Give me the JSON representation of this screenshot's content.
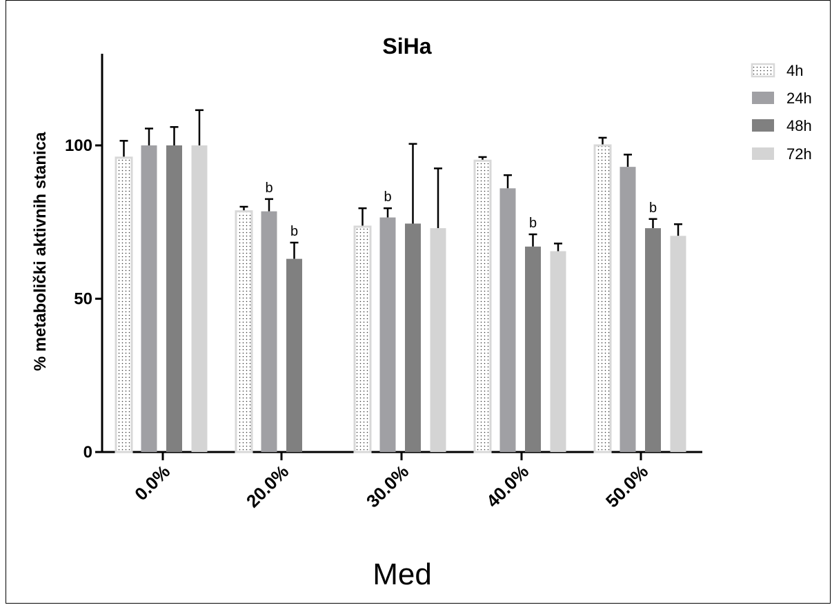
{
  "chart_data": {
    "type": "bar",
    "title": "SiHa",
    "xlabel": "Med",
    "ylabel": "% metabolički aktivnih stanica",
    "ylim": [
      0,
      130
    ],
    "yticks": [
      "0",
      "50",
      "100"
    ],
    "categories": [
      "0.0%",
      "20.0%",
      "30.0%",
      "40.0%",
      "50.0%"
    ],
    "series": [
      {
        "name": "4h",
        "color": "#ffffff",
        "values": [
          96,
          78.5,
          73.5,
          95,
          100
        ],
        "errors": [
          5.5,
          1.5,
          6,
          1.2,
          2.5
        ],
        "annotations": [
          "",
          "",
          "",
          "",
          ""
        ]
      },
      {
        "name": "24h",
        "color": "#a0a0a4",
        "values": [
          100,
          78.5,
          76.5,
          86,
          93
        ],
        "errors": [
          5.5,
          4,
          3,
          4.3,
          4
        ],
        "annotations": [
          "",
          "b",
          "b",
          "",
          ""
        ]
      },
      {
        "name": "48h",
        "color": "#808080",
        "values": [
          100,
          63,
          74.5,
          67,
          73
        ],
        "errors": [
          6,
          5.3,
          26,
          4,
          3
        ],
        "annotations": [
          "",
          "b",
          "",
          "b",
          "b"
        ]
      },
      {
        "name": "72h",
        "color": "#d4d4d4",
        "values": [
          100,
          null,
          73,
          65.5,
          70.5
        ],
        "errors": [
          11.5,
          null,
          19.5,
          2.5,
          3.8
        ],
        "annotations": [
          "",
          "",
          "",
          "",
          ""
        ]
      }
    ],
    "legend_position": "top-right",
    "grid": false
  }
}
